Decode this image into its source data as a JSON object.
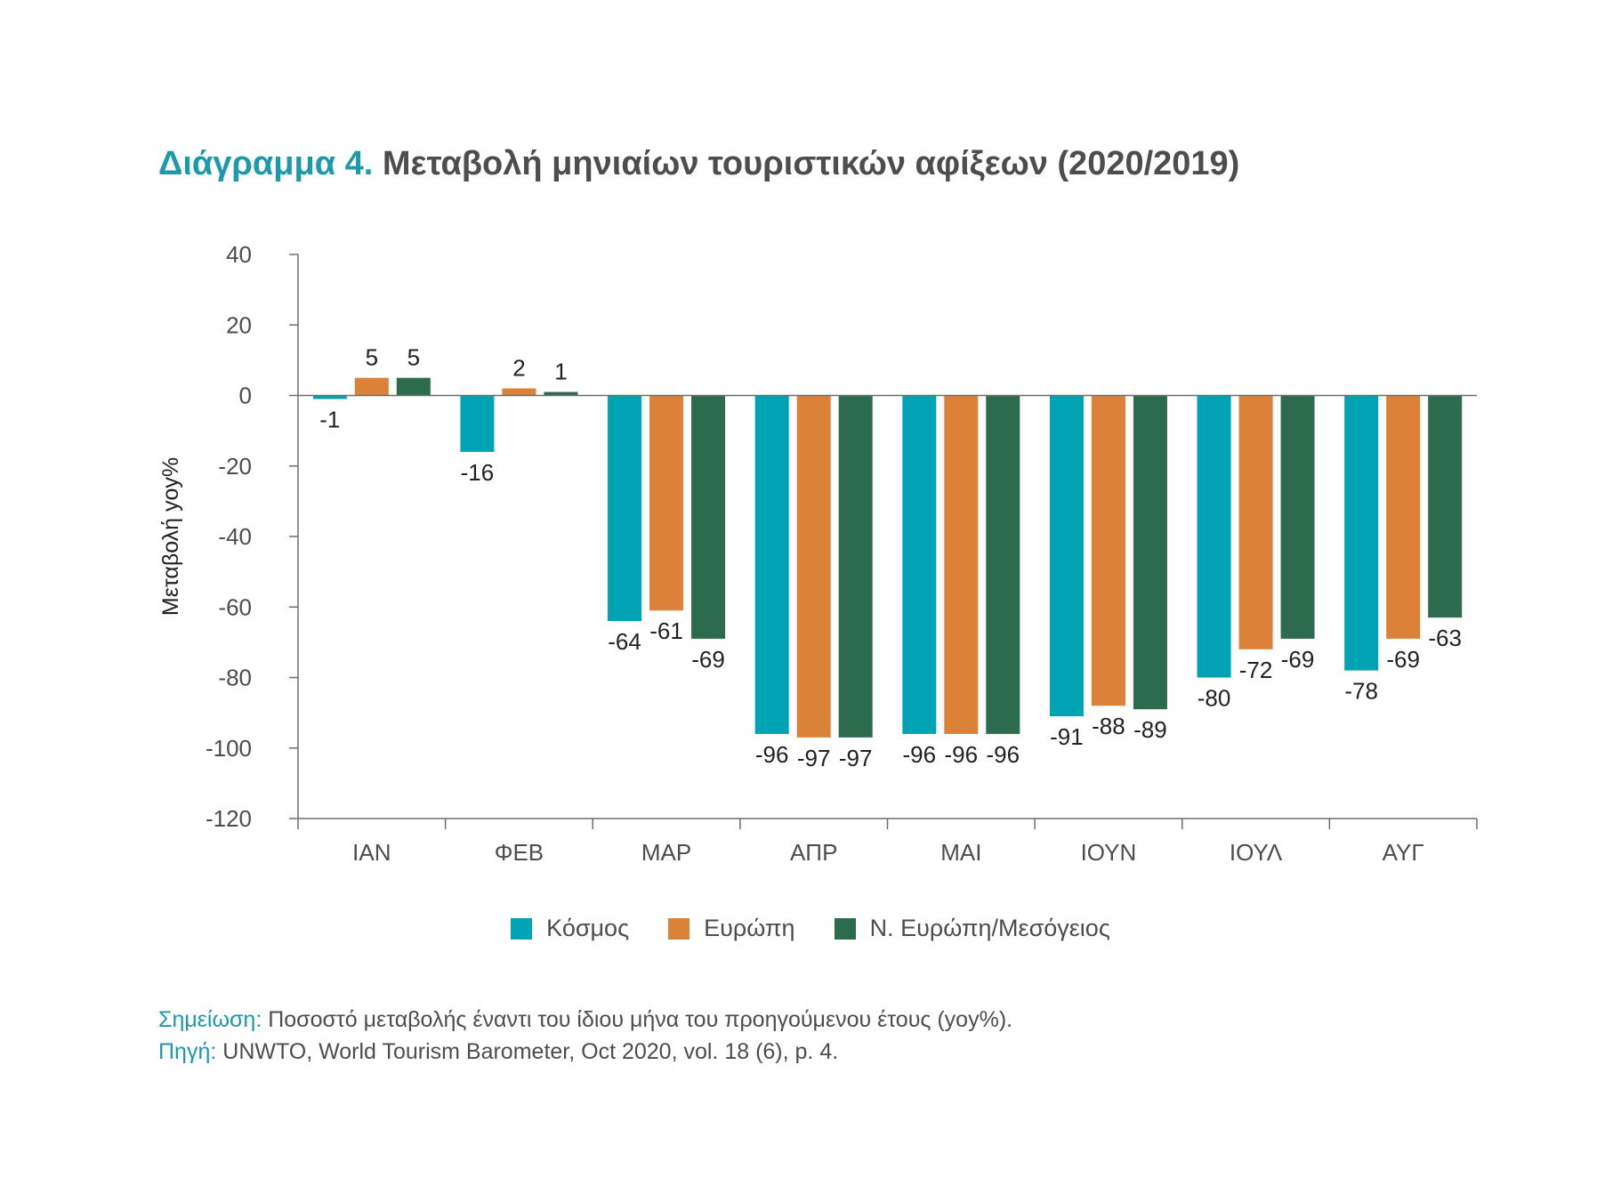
{
  "title": {
    "lead": "Διάγραμμα 4.",
    "rest": "Μεταβολή μηνιαίων τουριστικών αφίξεων (2020/2019)"
  },
  "chart_data": {
    "type": "bar",
    "categories": [
      "ΙΑΝ",
      "ΦΕΒ",
      "ΜΑΡ",
      "ΑΠΡ",
      "ΜΑΙ",
      "ΙΟΥΝ",
      "ΙΟΥΛ",
      "ΑΥΓ"
    ],
    "series": [
      {
        "name": "Κόσμος",
        "color": "#00a3b4",
        "values": [
          -1,
          -16,
          -64,
          -96,
          -96,
          -91,
          -80,
          -78
        ]
      },
      {
        "name": "Ευρώπη",
        "color": "#dc8138",
        "values": [
          5,
          2,
          -61,
          -97,
          -96,
          -88,
          -72,
          -69
        ]
      },
      {
        "name": "Ν. Ευρώπη/Μεσόγειος",
        "color": "#2d6b4e",
        "values": [
          5,
          1,
          -69,
          -97,
          -96,
          -89,
          -69,
          -63
        ]
      }
    ],
    "ylabel": "Μεταβολή yoy%",
    "xlabel": "",
    "ylim": [
      -120,
      40
    ],
    "yticks": [
      40,
      20,
      0,
      -20,
      -40,
      -60,
      -80,
      -100,
      -120
    ],
    "legend_position": "bottom",
    "grid": false
  },
  "notes": {
    "note_label": "Σημείωση:",
    "note_text": " Ποσοστό μεταβολής έναντι του ίδιου μήνα του προηγούμενου έτους (yoy%).",
    "source_label": "Πηγή:",
    "source_text": " UNWTO, World Tourism Barometer, Oct 2020, vol. 18 (6), p. 4."
  }
}
